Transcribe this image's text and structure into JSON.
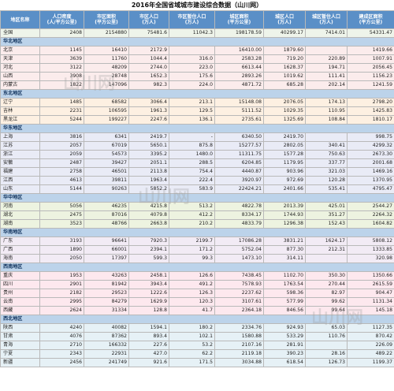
{
  "title": "2016年全国省域城市建设综合数据（山川网）",
  "headers": [
    "地区名称",
    "人口密度\n(人/平方公里)",
    "市区面积\n(平方公里)",
    "市区人口\n(万人)",
    "市区暂住人口\n(万人)",
    "城区面积\n(平方公里)",
    "城区人口\n(万人)",
    "城区暂住人口\n(万人)",
    "建成区面积\n(平方公里)"
  ],
  "total": {
    "name": "全国",
    "values": [
      "2408",
      "2154880",
      "75481.6",
      "11042.3",
      "198178.59",
      "40299.17",
      "7414.01",
      "54331.47"
    ]
  },
  "regions": [
    {
      "name": "华北地区",
      "rows": [
        {
          "name": "北京",
          "values": [
            "1145",
            "16410",
            "2172.9",
            "",
            "16410.00",
            "1879.60",
            "",
            "1419.66"
          ]
        },
        {
          "name": "天津",
          "values": [
            "3639",
            "11760",
            "1044.4",
            "316.0",
            "2583.28",
            "719.20",
            "220.89",
            "1007.91"
          ]
        },
        {
          "name": "河北",
          "values": [
            "3122",
            "48209",
            "2744.0",
            "223.0",
            "6613.44",
            "1628.37",
            "194.71",
            "2056.45"
          ]
        },
        {
          "name": "山西",
          "values": [
            "3908",
            "28748",
            "1652.3",
            "175.6",
            "2893.26",
            "1019.62",
            "111.41",
            "1156.23"
          ]
        },
        {
          "name": "内蒙古",
          "values": [
            "1822",
            "147096",
            "982.3",
            "224.0",
            "4871.72",
            "685.28",
            "202.14",
            "1241.59"
          ]
        }
      ]
    },
    {
      "name": "东北地区",
      "rows": [
        {
          "name": "辽宁",
          "values": [
            "1485",
            "68582",
            "3066.4",
            "213.1",
            "15148.08",
            "2076.05",
            "174.13",
            "2798.20"
          ]
        },
        {
          "name": "吉林",
          "values": [
            "2231",
            "106595",
            "1961.3",
            "129.5",
            "5111.52",
            "1029.35",
            "110.95",
            "1425.83"
          ]
        },
        {
          "name": "黑龙江",
          "values": [
            "5244",
            "199227",
            "2247.6",
            "136.1",
            "2735.61",
            "1325.69",
            "108.84",
            "1810.17"
          ]
        }
      ]
    },
    {
      "name": "华东地区",
      "rows": [
        {
          "name": "上海",
          "values": [
            "3816",
            "6341",
            "2419.7",
            "-",
            "6340.50",
            "2419.70",
            "",
            "998.75"
          ]
        },
        {
          "name": "江苏",
          "values": [
            "2057",
            "67019",
            "5650.1",
            "875.8",
            "15277.57",
            "2802.05",
            "340.41",
            "4299.32"
          ]
        },
        {
          "name": "浙江",
          "values": [
            "2059",
            "54573",
            "3395.2",
            "1480.0",
            "11311.75",
            "1577.28",
            "750.63",
            "2673.30"
          ]
        },
        {
          "name": "安徽",
          "values": [
            "2487",
            "39427",
            "2051.1",
            "288.5",
            "6204.85",
            "1179.95",
            "337.77",
            "2001.68"
          ]
        },
        {
          "name": "福建",
          "values": [
            "2758",
            "46501",
            "2113.8",
            "754.4",
            "4440.87",
            "903.96",
            "321.03",
            "1469.16"
          ]
        },
        {
          "name": "江西",
          "values": [
            "4613",
            "39811",
            "1963.4",
            "222.4",
            "3920.97",
            "972.69",
            "120.28",
            "1370.95"
          ]
        },
        {
          "name": "山东",
          "values": [
            "5144",
            "90263",
            "5852.2",
            "583.9",
            "22424.21",
            "2401.66",
            "535.41",
            "4795.47"
          ]
        }
      ]
    },
    {
      "name": "华中地区",
      "rows": [
        {
          "name": "河南",
          "values": [
            "5056",
            "46235",
            "4215.8",
            "513.2",
            "4822.78",
            "2013.39",
            "425.01",
            "2544.27"
          ]
        },
        {
          "name": "湖北",
          "values": [
            "2475",
            "87016",
            "4079.8",
            "412.2",
            "8334.17",
            "1744.93",
            "351.27",
            "2264.32"
          ]
        },
        {
          "name": "湖南",
          "values": [
            "3523",
            "48766",
            "2663.8",
            "210.2",
            "4833.79",
            "1296.38",
            "152.43",
            "1604.82"
          ]
        }
      ]
    },
    {
      "name": "华南地区",
      "rows": [
        {
          "name": "广东",
          "values": [
            "3193",
            "96641",
            "7920.3",
            "2199.7",
            "17086.28",
            "3831.21",
            "1624.17",
            "5808.12"
          ]
        },
        {
          "name": "广西",
          "values": [
            "1890",
            "66001",
            "2394.1",
            "171.2",
            "5752.04",
            "877.30",
            "212.31",
            "1333.85"
          ]
        },
        {
          "name": "海南",
          "values": [
            "2050",
            "17397",
            "599.3",
            "99.3",
            "1473.10",
            "314.11",
            "",
            "320.98"
          ]
        }
      ]
    },
    {
      "name": "西南地区",
      "rows": [
        {
          "name": "重庆",
          "values": [
            "1953",
            "43263",
            "2458.1",
            "126.6",
            "7438.45",
            "1102.70",
            "350.30",
            "1350.66"
          ]
        },
        {
          "name": "四川",
          "values": [
            "2901",
            "81942",
            "3943.4",
            "491.2",
            "7578.93",
            "1763.54",
            "270.44",
            "2615.59"
          ]
        },
        {
          "name": "贵州",
          "values": [
            "2182",
            "29523",
            "1222.6",
            "126.3",
            "2237.62",
            "598.36",
            "82.97",
            "904.47"
          ]
        },
        {
          "name": "云南",
          "values": [
            "2995",
            "84279",
            "1629.9",
            "120.3",
            "3107.61",
            "577.99",
            "99.62",
            "1131.34"
          ]
        },
        {
          "name": "西藏",
          "values": [
            "2624",
            "31334",
            "128.8",
            "41.7",
            "2364.18",
            "846.56",
            "99.64",
            "145.18"
          ]
        }
      ]
    },
    {
      "name": "西北地区",
      "rows": [
        {
          "name": "陕西",
          "values": [
            "4240",
            "40082",
            "1594.1",
            "180.2",
            "2334.76",
            "924.93",
            "65.03",
            "1127.35"
          ]
        },
        {
          "name": "甘肃",
          "values": [
            "4076",
            "87362",
            "893.4",
            "102.1",
            "1580.88",
            "533.29",
            "110.76",
            "870.42"
          ]
        },
        {
          "name": "青海",
          "values": [
            "2710",
            "166332",
            "227.6",
            "53.2",
            "2107.16",
            "281.91",
            "",
            "226.09"
          ]
        },
        {
          "name": "宁夏",
          "values": [
            "2343",
            "22931",
            "427.0",
            "62.2",
            "2119.18",
            "390.23",
            "28.16",
            "489.22"
          ]
        },
        {
          "name": "新疆",
          "values": [
            "2456",
            "241749",
            "921.6",
            "171.5",
            "3034.88",
            "618.54",
            "126.73",
            "1199.37"
          ]
        }
      ]
    }
  ],
  "watermark": {
    "text": "山川网"
  }
}
